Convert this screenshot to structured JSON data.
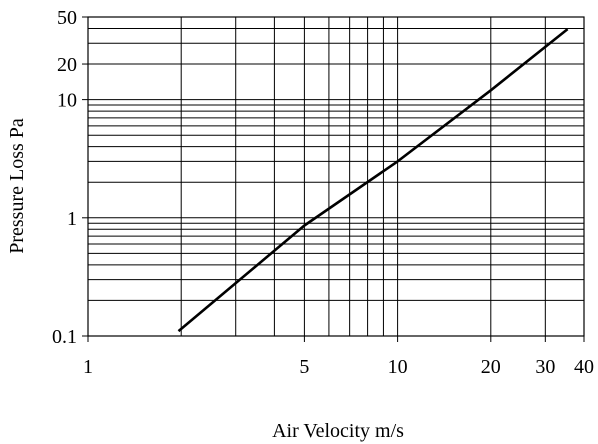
{
  "chart_data": {
    "type": "line",
    "title": "",
    "xlabel": "Air Velocity m/s",
    "ylabel": "Pressure  Loss  Pa",
    "xscale": "log",
    "yscale": "log",
    "xlim": [
      1,
      40
    ],
    "ylim": [
      0.1,
      50
    ],
    "grid": true,
    "x_ticks": [
      {
        "value": 1,
        "label": "1"
      },
      {
        "value": 5,
        "label": "5"
      },
      {
        "value": 10,
        "label": "10"
      },
      {
        "value": 20,
        "label": "20"
      },
      {
        "value": 30,
        "label": "30"
      },
      {
        "value": 40,
        "label": "40"
      }
    ],
    "y_ticks": [
      {
        "value": 0.1,
        "label": "0.1"
      },
      {
        "value": 1,
        "label": "1"
      },
      {
        "value": 10,
        "label": "10"
      },
      {
        "value": 20,
        "label": "20"
      },
      {
        "value": 50,
        "label": "50"
      }
    ],
    "x_gridlines": [
      2,
      3,
      4,
      5,
      6,
      7,
      8,
      9,
      10,
      20,
      30
    ],
    "y_gridlines": [
      0.2,
      0.3,
      0.4,
      0.5,
      0.6,
      0.7,
      0.8,
      0.9,
      1,
      2,
      3,
      4,
      5,
      6,
      7,
      8,
      9,
      10,
      20,
      30,
      40
    ],
    "series": [
      {
        "x": [
          1.96,
          5.0,
          10.0,
          20.0,
          35.4
        ],
        "y": [
          0.11,
          0.86,
          3.0,
          12.0,
          39.5
        ]
      }
    ]
  }
}
